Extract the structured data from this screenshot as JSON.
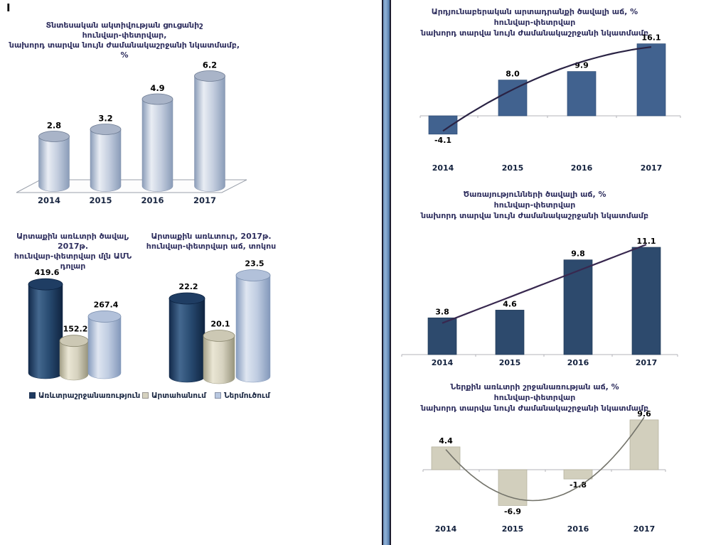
{
  "page": {
    "section_marker": "I"
  },
  "legend": {
    "items": [
      {
        "label": "Առևտրաշրջանառություն",
        "color": "#1e3a60"
      },
      {
        "label": "Արտահանում",
        "color": "#d6d2bf"
      },
      {
        "label": "Ներմուծում",
        "color": "#b9c8e0"
      }
    ]
  },
  "chart_data": [
    {
      "id": "economic-activity-index",
      "type": "bar",
      "variant": "3d-cylinder",
      "title": "Տնտեսական ակտիվության ցուցանիշ հունվար-փետրվար, նախորդ տարվա նույն ժամանակաշրջանի նկատմամբ, %",
      "title_lines": [
        "Տնտեսական ակտիվության ցուցանիշ",
        "հունվար-փետրվար,",
        "նախորդ տարվա նույն ժամանակաշրջանի նկատմամբ, %"
      ],
      "categories": [
        "2014",
        "2015",
        "2016",
        "2017"
      ],
      "values": [
        2.8,
        3.2,
        4.9,
        6.2
      ],
      "labels": [
        "2.8",
        "3.2",
        "4.9",
        "6.2"
      ],
      "bar_color": "#b7c3d9",
      "ylim": [
        0,
        7
      ],
      "grid": false,
      "legend_position": "none"
    },
    {
      "id": "foreign-trade-volume",
      "type": "bar",
      "variant": "3d-cylinder",
      "title": "Արտաքին առևտրի ծավալ, 2017թ. հունվար-փետրվար մլն ԱՄՆ դոլար",
      "title_lines": [
        "Արտաքին առևտրի ծավալ, 2017թ.",
        "հունվար-փետրվար մլն ԱՄՆ դոլար"
      ],
      "categories": [
        "Առևտրաշրջանառություն",
        "Արտահանում",
        "Ներմուծում"
      ],
      "values": [
        419.6,
        152.2,
        267.4
      ],
      "labels": [
        "419.6",
        "152.2",
        "267.4"
      ],
      "colors": [
        "#1e3a60",
        "#d6d2bf",
        "#b9c8e0"
      ],
      "ylim": [
        0,
        420
      ],
      "grid": false,
      "legend_position": "below"
    },
    {
      "id": "foreign-trade-growth",
      "type": "bar",
      "variant": "3d-cylinder",
      "title": "Արտաքին առևտուր, 2017թ. հունվար-փետրվար աճ, տոկոս",
      "title_lines": [
        "Արտաքին առևտուր, 2017թ.",
        "հունվար-փետրվար աճ, տոկոս"
      ],
      "categories": [
        "Առևտրաշրջանառություն",
        "Արտահանում",
        "Ներմուծում"
      ],
      "values": [
        22.2,
        20.1,
        23.5
      ],
      "labels": [
        "22.2",
        "20.1",
        "23.5"
      ],
      "colors": [
        "#1e3a60",
        "#d6d2bf",
        "#b9c8e0"
      ],
      "ylim": [
        17.8,
        24
      ],
      "grid": false,
      "legend_position": "below"
    },
    {
      "id": "industrial-output-growth",
      "type": "bar",
      "variant": "bar-with-trend",
      "trend": "quadratic",
      "title": "Արդյունաբերական արտադրանքի ծավալի աճ, % հունվար-փետրվար նախորդ տարվա նույն ժամանակաշրջանի նկատմամբ",
      "title_lines": [
        "Արդյունաբերական արտադրանքի ծավալի աճ, %",
        "հունվար-փետրվար",
        "նախորդ տարվա նույն ժամանակաշրջանի նկատմամբ"
      ],
      "categories": [
        "2014",
        "2015",
        "2016",
        "2017"
      ],
      "values": [
        -4.1,
        8.0,
        9.9,
        16.1
      ],
      "labels": [
        "-4.1",
        "8.0",
        "9.9",
        "16.1"
      ],
      "bar_color": "#41628f",
      "trend_color": "#2a2344",
      "ylim": [
        -6,
        18
      ],
      "grid": false
    },
    {
      "id": "services-growth",
      "type": "bar",
      "variant": "bar-with-trend",
      "trend": "linear",
      "title": "Ծառայությունների ծավալի աճ, % հունվար-փետրվար նախորդ տարվա նույն ժամանակաշրջանի նկատմամբ",
      "title_lines": [
        "Ծառայությունների ծավալի աճ, %",
        "հունվար-փետրվար",
        "նախորդ տարվա նույն ժամանակաշրջանի նկատմամբ"
      ],
      "categories": [
        "2014",
        "2015",
        "2016",
        "2017"
      ],
      "values": [
        3.8,
        4.6,
        9.8,
        11.1
      ],
      "labels": [
        "3.8",
        "4.6",
        "9.8",
        "11.1"
      ],
      "bar_color": "#2d4a6d",
      "trend_color": "#38284f",
      "ylim": [
        0,
        13
      ],
      "grid": false
    },
    {
      "id": "domestic-trade-turnover-growth",
      "type": "bar",
      "variant": "bar-with-trend",
      "trend": "quadratic",
      "title": "Ներքին առևտրի շրջանառության աճ, % հունվար-փետրվար նախորդ տարվա նույն ժամանակաշրջանի նկատմամբ",
      "title_lines": [
        "Ներքին առևտրի շրջանառության աճ, %",
        "հունվար-փետրվար",
        "նախորդ տարվա նույն ժամանակաշրջանի նկատմամբ"
      ],
      "categories": [
        "2014",
        "2015",
        "2016",
        "2017"
      ],
      "values": [
        4.4,
        -6.9,
        -1.8,
        9.6
      ],
      "labels": [
        "4.4",
        "-6.9",
        "-1.8",
        "9.6"
      ],
      "bar_color": "#d2cfbd",
      "trend_color": "#73736a",
      "ylim": [
        -8,
        11
      ],
      "grid": false
    }
  ]
}
